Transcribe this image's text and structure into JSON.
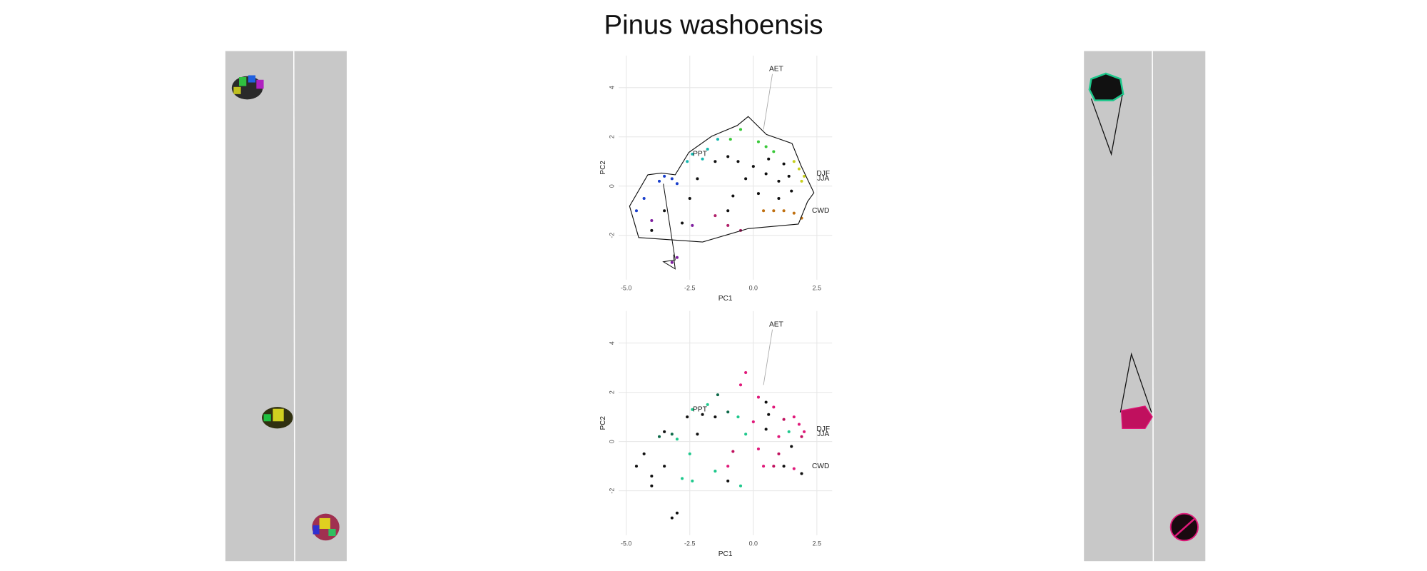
{
  "title": "Pinus washoensis",
  "chart_data": [
    {
      "type": "scatter",
      "xlabel": "PC1",
      "ylabel": "PC2",
      "xlim": [
        -5.3,
        3.1
      ],
      "ylim": [
        -3.8,
        5.3
      ],
      "xticks": [
        {
          "value": -5,
          "label": "-5.0"
        },
        {
          "value": -2.5,
          "label": "-2.5"
        },
        {
          "value": 0,
          "label": "0.0"
        },
        {
          "value": 2.5,
          "label": "2.5"
        }
      ],
      "yticks": [
        -2,
        0,
        2,
        4
      ],
      "grid": true,
      "annotations": [
        "AET",
        "PPT",
        "DJF",
        "JJA",
        "CWD"
      ],
      "x": [
        -3.5,
        -3.2,
        -3.0,
        -4.6,
        -4.3,
        -3.7,
        -2.4,
        -2.0,
        -1.4,
        -1.8,
        -2.6,
        -0.5,
        0.2,
        0.5,
        0.8,
        -0.9,
        1.8,
        2.0,
        1.9,
        1.6,
        1.2,
        1.6,
        0.8,
        1.9,
        0.4,
        -1.0,
        -0.5,
        -1.5,
        -2.4,
        -3.0,
        -3.2,
        -4.0,
        -1.5,
        -1.0,
        -0.6,
        0.0,
        0.5,
        1.0,
        1.4,
        0.2,
        -0.8,
        -2.5,
        -3.5,
        -2.2,
        1.0,
        1.5,
        -0.3,
        -2.8,
        -1.0,
        0.6,
        1.2,
        -4.0
      ],
      "values": [
        0.4,
        0.3,
        0.1,
        -1.0,
        -0.5,
        0.2,
        1.3,
        1.1,
        1.9,
        1.5,
        1.0,
        2.3,
        1.8,
        1.6,
        1.4,
        1.9,
        0.7,
        0.4,
        0.2,
        1.0,
        -1.0,
        -1.1,
        -1.0,
        -1.3,
        -1.0,
        -1.6,
        -1.8,
        -1.2,
        -1.6,
        -2.9,
        -3.1,
        -1.4,
        1.0,
        1.2,
        1.0,
        0.8,
        0.5,
        0.2,
        0.4,
        -0.3,
        -0.4,
        -0.5,
        -1.0,
        0.3,
        -0.5,
        -0.2,
        0.3,
        -1.5,
        -1.0,
        1.1,
        0.9,
        -1.8
      ],
      "point_colors": [
        "#1a3fcc",
        "#1a3fcc",
        "#1a3fcc",
        "#1a3fcc",
        "#1a3fcc",
        "#1a3fcc",
        "#17b8b0",
        "#17b8b0",
        "#17b8b0",
        "#17b8b0",
        "#17b8b0",
        "#39c839",
        "#39c839",
        "#39c839",
        "#39c839",
        "#39c839",
        "#c8d020",
        "#c8d020",
        "#c8d020",
        "#c8d020",
        "#c07010",
        "#c07010",
        "#c07010",
        "#c07010",
        "#c07010",
        "#b0206a",
        "#b0206a",
        "#b0206a",
        "#8020a0",
        "#8020a0",
        "#8020a0",
        "#8020a0",
        "#111111",
        "#111111",
        "#111111",
        "#111111",
        "#111111",
        "#111111",
        "#111111",
        "#111111",
        "#111111",
        "#111111",
        "#111111",
        "#111111",
        "#111111",
        "#111111",
        "#111111",
        "#111111",
        "#111111",
        "#111111",
        "#111111",
        "#111111"
      ]
    },
    {
      "type": "scatter",
      "xlabel": "PC1",
      "ylabel": "PC2",
      "xlim": [
        -5.3,
        3.1
      ],
      "ylim": [
        -3.8,
        5.3
      ],
      "xticks": [
        {
          "value": -5,
          "label": "-5.0"
        },
        {
          "value": -2.5,
          "label": "-2.5"
        },
        {
          "value": 0,
          "label": "0.0"
        },
        {
          "value": 2.5,
          "label": "2.5"
        }
      ],
      "yticks": [
        -2,
        0,
        2,
        4
      ],
      "grid": true,
      "annotations": [
        "AET",
        "PPT",
        "DJF",
        "JJA",
        "CWD"
      ],
      "x": [
        -3.5,
        -3.2,
        -3.0,
        -4.6,
        -4.3,
        -3.7,
        -2.4,
        -2.0,
        -1.4,
        -1.8,
        -2.6,
        -0.5,
        0.2,
        0.5,
        0.8,
        -0.3,
        1.8,
        2.0,
        1.9,
        1.6,
        1.2,
        1.6,
        0.8,
        1.9,
        0.4,
        -1.0,
        -0.5,
        -1.5,
        -2.4,
        -3.0,
        -3.2,
        -4.0,
        -1.5,
        -1.0,
        -0.6,
        0.0,
        0.5,
        1.0,
        1.4,
        0.2,
        -0.8,
        -2.5,
        -3.5,
        -2.2,
        1.0,
        1.5,
        -0.3,
        -2.8,
        -1.0,
        0.6,
        1.2,
        -4.0
      ],
      "values": [
        0.4,
        0.3,
        0.1,
        -1.0,
        -0.5,
        0.2,
        1.3,
        1.1,
        1.9,
        1.5,
        1.0,
        2.3,
        1.8,
        1.6,
        1.4,
        2.8,
        0.7,
        0.4,
        0.2,
        1.0,
        -1.0,
        -1.1,
        -1.0,
        -1.3,
        -1.0,
        -1.6,
        -1.8,
        -1.2,
        -1.6,
        -2.9,
        -3.1,
        -1.4,
        1.0,
        1.2,
        1.0,
        0.8,
        0.5,
        0.2,
        0.4,
        -0.3,
        -0.4,
        -0.5,
        -1.0,
        0.3,
        -0.5,
        -0.2,
        0.3,
        -1.5,
        -1.0,
        1.1,
        0.9,
        -1.8
      ],
      "point_colors": [
        "#111111",
        "#0f6a4a",
        "#1ec88c",
        "#111111",
        "#111111",
        "#0f6a4a",
        "#1ec88c",
        "#111111",
        "#0f6a4a",
        "#1ec88c",
        "#111111",
        "#e0197a",
        "#e0197a",
        "#111111",
        "#e0197a",
        "#e0197a",
        "#e0197a",
        "#e0197a",
        "#c0105e",
        "#e0197a",
        "#111111",
        "#e0197a",
        "#c0105e",
        "#111111",
        "#e0197a",
        "#111111",
        "#1ec88c",
        "#1ec88c",
        "#1ec88c",
        "#111111",
        "#111111",
        "#111111",
        "#111111",
        "#0f6a4a",
        "#1ec88c",
        "#e0197a",
        "#111111",
        "#e0197a",
        "#1ec88c",
        "#e0197a",
        "#c0105e",
        "#1ec88c",
        "#111111",
        "#111111",
        "#c0105e",
        "#111111",
        "#1ec88c",
        "#1ec88c",
        "#e0197a",
        "#111111",
        "#c0105e",
        "#111111"
      ]
    }
  ]
}
